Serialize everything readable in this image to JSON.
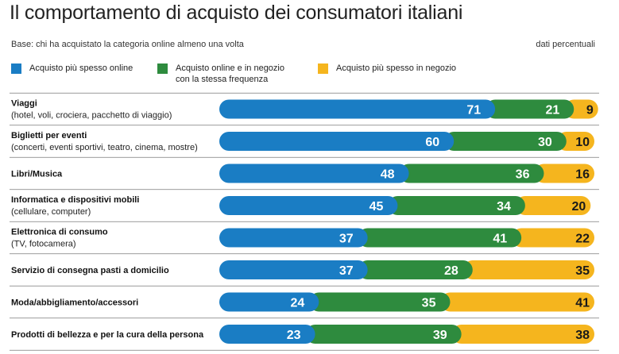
{
  "header": {
    "title": "Il comportamento di acquisto dei consumatori italiani",
    "subtitle": "Base: chi ha acquistato la categoria online almeno una volta",
    "unit": "dati percentuali"
  },
  "colors": {
    "online": "#1a7dc4",
    "both": "#2e8b3e",
    "store": "#f5b51e",
    "divider": "#7a7a7a"
  },
  "chart_data": {
    "type": "bar",
    "orientation": "horizontal",
    "stacked": true,
    "xlim": [
      0,
      100
    ],
    "legend": "top",
    "grid": false,
    "categories": [
      {
        "title": "Viaggi",
        "sub": "(hotel, voli, crociera, pacchetto di viaggio)"
      },
      {
        "title": "Biglietti per eventi",
        "sub": "(concerti, eventi sportivi, teatro, cinema, mostre)"
      },
      {
        "title": "Libri/Musica",
        "sub": ""
      },
      {
        "title": "Informatica e dispositivi mobili",
        "sub": "(cellulare, computer)"
      },
      {
        "title": "Elettronica di consumo",
        "sub": "(TV, fotocamera)"
      },
      {
        "title": "Servizio di consegna pasti a domicilio",
        "sub": ""
      },
      {
        "title": "Moda/abbigliamento/accessori",
        "sub": ""
      },
      {
        "title": "Prodotti di bellezza e per la cura della persona",
        "sub": ""
      }
    ],
    "series": [
      {
        "name": "Acquisto più spesso online",
        "values": [
          71,
          60,
          48,
          45,
          37,
          37,
          24,
          23
        ]
      },
      {
        "name": "Acquisto online e in negozio con la stessa frequenza",
        "name_lines": [
          "Acquisto online e in negozio",
          "con la stessa frequenza"
        ],
        "values": [
          21,
          30,
          36,
          34,
          41,
          28,
          35,
          39
        ]
      },
      {
        "name": "Acquisto più spesso in negozio",
        "values": [
          9,
          10,
          16,
          20,
          22,
          35,
          41,
          38
        ]
      }
    ]
  }
}
